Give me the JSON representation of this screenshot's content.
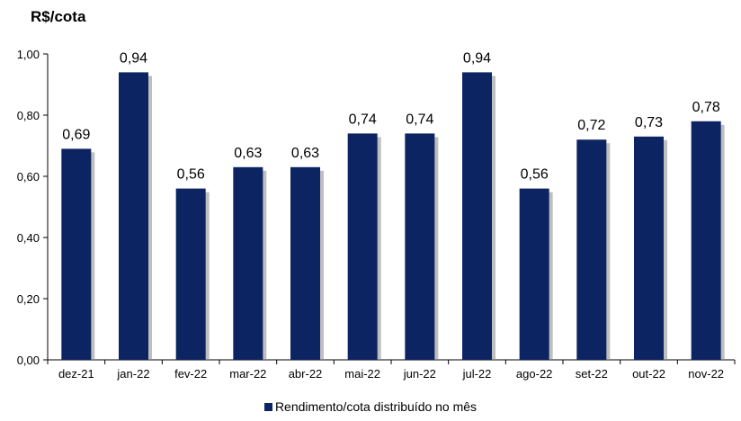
{
  "chart_data": {
    "type": "bar",
    "title": "R$/cota",
    "categories": [
      "dez-21",
      "jan-22",
      "fev-22",
      "mar-22",
      "abr-22",
      "mai-22",
      "jun-22",
      "jul-22",
      "ago-22",
      "set-22",
      "out-22",
      "nov-22"
    ],
    "series": [
      {
        "name": "Rendimento/cota distribuído no mês",
        "values": [
          0.69,
          0.94,
          0.56,
          0.63,
          0.63,
          0.74,
          0.74,
          0.94,
          0.56,
          0.72,
          0.73,
          0.78
        ],
        "labels": [
          "0,69",
          "0,94",
          "0,56",
          "0,63",
          "0,63",
          "0,74",
          "0,74",
          "0,94",
          "0,56",
          "0,72",
          "0,73",
          "0,78"
        ],
        "color": "#0c2461"
      }
    ],
    "ylim": [
      0,
      1.0
    ],
    "yticks": [
      0,
      0.2,
      0.4,
      0.6,
      0.8,
      1.0
    ],
    "ytick_labels": [
      "0,00",
      "0,20",
      "0,40",
      "0,60",
      "0,80",
      "1,00"
    ],
    "grid": false,
    "legend_position": "bottom",
    "bar_shadow": true
  }
}
